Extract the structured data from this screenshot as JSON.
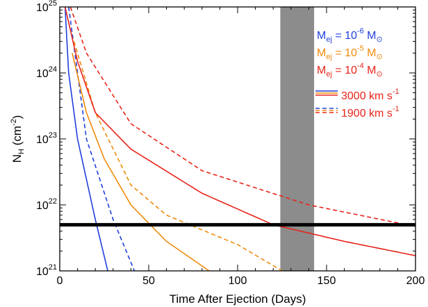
{
  "chart_data": {
    "type": "line",
    "title": "",
    "xlabel": "Time After Ejection (Days)",
    "ylabel": {
      "main": "N",
      "sub": "H",
      "unit_open": " (cm",
      "unit_sup": "-2",
      "unit_close": ")"
    },
    "xlim": [
      0,
      200
    ],
    "ylim": [
      1e+21,
      1e+25
    ],
    "yscale": "log",
    "x_ticks": [
      0,
      50,
      100,
      150,
      200
    ],
    "x_tick_labels": [
      "0",
      "50",
      "100",
      "150",
      "200"
    ],
    "y_ticks": [
      1e+21,
      1e+22,
      1e+23,
      1e+24,
      1e+25
    ],
    "y_tick_labels": [
      {
        "base": "10",
        "exp": "21"
      },
      {
        "base": "10",
        "exp": "22"
      },
      {
        "base": "10",
        "exp": "23"
      },
      {
        "base": "10",
        "exp": "24"
      },
      {
        "base": "10",
        "exp": "25"
      }
    ],
    "grid": false,
    "legend_position": "top-right",
    "colors": {
      "blue": "#1f3fdc",
      "orange": "#f08a0a",
      "red": "#e8231a",
      "band": "#8c8c8c",
      "threshold": "#000000"
    },
    "shaded_band": {
      "x": [
        124,
        143
      ],
      "color": "#8c8c8c"
    },
    "threshold_line": {
      "y": 5e+21,
      "color": "#000000"
    },
    "series": [
      {
        "mass_exp": -6,
        "speed": 3000,
        "color": "#1f3fdc",
        "dash": false,
        "points": [
          [
            3,
            1e+25
          ],
          [
            5,
            1e+24
          ],
          [
            10,
            1e+23
          ],
          [
            20,
            6e+21
          ],
          [
            27,
            1e+21
          ]
        ]
      },
      {
        "mass_exp": -6,
        "speed": 1900,
        "color": "#1f3fdc",
        "dash": true,
        "points": [
          [
            5,
            1e+25
          ],
          [
            10,
            1e+24
          ],
          [
            15,
            1e+23
          ],
          [
            30,
            6e+21
          ],
          [
            42,
            1e+21
          ]
        ]
      },
      {
        "mass_exp": -5,
        "speed": 3000,
        "color": "#f08a0a",
        "dash": false,
        "points": [
          [
            7,
            2e+24
          ],
          [
            15,
            2.5e+23
          ],
          [
            25,
            5e+22
          ],
          [
            40,
            1e+22
          ],
          [
            60,
            2.8e+21
          ],
          [
            84,
            1e+21
          ]
        ]
      },
      {
        "mass_exp": -5,
        "speed": 1900,
        "color": "#f08a0a",
        "dash": true,
        "points": [
          [
            8,
            3e+24
          ],
          [
            20,
            2.5e+23
          ],
          [
            40,
            2e+22
          ],
          [
            60,
            7e+21
          ],
          [
            100,
            2.5e+21
          ],
          [
            125,
            1e+21
          ]
        ]
      },
      {
        "mass_exp": -4,
        "speed": 3000,
        "color": "#e8231a",
        "dash": false,
        "points": [
          [
            3,
            1e+25
          ],
          [
            10,
            1.5e+24
          ],
          [
            20,
            2.5e+23
          ],
          [
            40,
            7e+22
          ],
          [
            80,
            1.5e+22
          ],
          [
            120,
            5e+21
          ],
          [
            160,
            2.8e+21
          ],
          [
            200,
            1.7e+21
          ]
        ]
      },
      {
        "mass_exp": -4,
        "speed": 1900,
        "color": "#e8231a",
        "dash": true,
        "points": [
          [
            6,
            1e+25
          ],
          [
            15,
            2e+24
          ],
          [
            40,
            1.7e+23
          ],
          [
            80,
            3.3e+22
          ],
          [
            140,
            1e+22
          ],
          [
            200,
            4.7e+21
          ]
        ]
      }
    ],
    "legend": {
      "mass_entries": [
        {
          "prefix": "M",
          "sub": "ej",
          "mid": " = 10",
          "sup": "-6",
          "suffix": " M",
          "sun": "⊙",
          "color": "#1f3fdc"
        },
        {
          "prefix": "M",
          "sub": "ej",
          "mid": " = 10",
          "sup": "-5",
          "suffix": " M",
          "sun": "⊙",
          "color": "#f08a0a"
        },
        {
          "prefix": "M",
          "sub": "ej",
          "mid": " = 10",
          "sup": "-4",
          "suffix": " M",
          "sun": "⊙",
          "color": "#e8231a"
        }
      ],
      "speed_entries": [
        {
          "text": "3000 km s",
          "sup": "-1",
          "dash": false,
          "color": "#e8231a"
        },
        {
          "text": "1900 km s",
          "sup": "-1",
          "dash": true,
          "color": "#e8231a"
        }
      ],
      "sample_colors": [
        "#1f3fdc",
        "#f08a0a",
        "#e8231a"
      ]
    }
  }
}
